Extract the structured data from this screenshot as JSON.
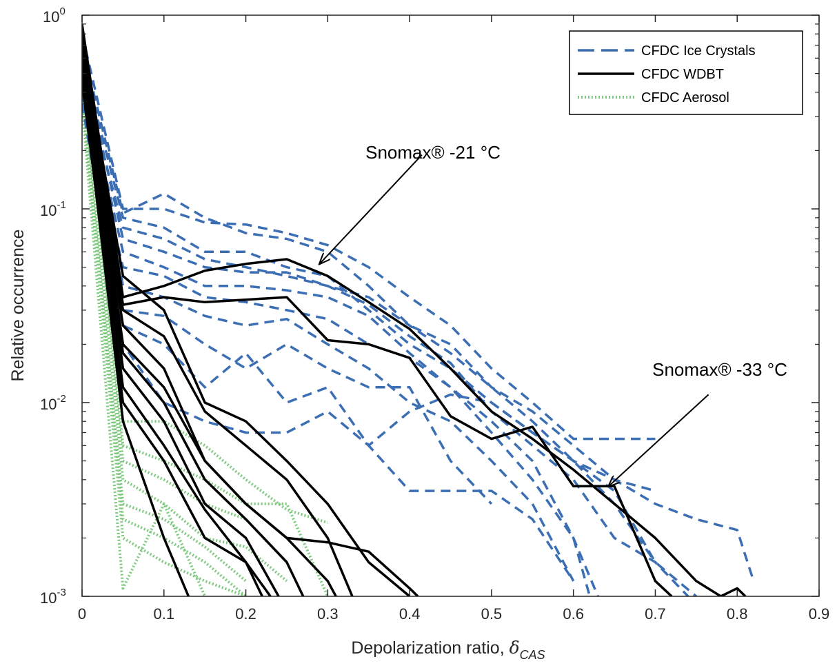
{
  "chart_data": {
    "type": "line",
    "xlabel": "Depolarization ratio, ",
    "xlabel_symbol": "δ",
    "xlabel_subscript": "CAS",
    "ylabel": "Relative occurrence",
    "xlim": [
      0,
      0.9
    ],
    "ylim": [
      0.001,
      1
    ],
    "yscale": "log",
    "x_ticks": [
      0,
      0.1,
      0.2,
      0.3,
      0.4,
      0.5,
      0.6,
      0.7,
      0.8,
      0.9
    ],
    "x_tick_labels": [
      "0",
      "0.1",
      "0.2",
      "0.3",
      "0.4",
      "0.5",
      "0.6",
      "0.7",
      "0.8",
      "0.9"
    ],
    "y_ticks": [
      {
        "value": 1,
        "base": "10",
        "exp": "0"
      },
      {
        "value": 0.1,
        "base": "10",
        "exp": "-1"
      },
      {
        "value": 0.01,
        "base": "10",
        "exp": "-2"
      },
      {
        "value": 0.001,
        "base": "10",
        "exp": "-3"
      }
    ],
    "grid": false,
    "legend": {
      "placement": "top-right",
      "entries": [
        {
          "label": "CFDC Ice Crystals",
          "color": "#3c6eb4",
          "style": "dashed"
        },
        {
          "label": "CFDC WDBT",
          "color": "#000000",
          "style": "solid"
        },
        {
          "label": "CFDC Aerosol",
          "color": "#7cc87c",
          "style": "dotted"
        }
      ]
    },
    "annotations": [
      {
        "text": "Snomax® -21 °C",
        "arrow_from": [
          0.415,
          0.19
        ],
        "arrow_to": [
          0.29,
          0.052
        ]
      },
      {
        "text": "Snomax® -33 °C",
        "arrow_from": [
          0.765,
          0.011
        ],
        "arrow_to": [
          0.643,
          0.0037
        ]
      }
    ],
    "series": [
      {
        "group": "CFDC Ice Crystals",
        "x": [
          0,
          0.05,
          0.1,
          0.15,
          0.2,
          0.25,
          0.3,
          0.35,
          0.4,
          0.45,
          0.5,
          0.55,
          0.6,
          0.65,
          0.7
        ],
        "y": [
          0.8,
          0.1,
          0.1,
          0.085,
          0.083,
          0.075,
          0.065,
          0.05,
          0.035,
          0.025,
          0.015,
          0.01,
          0.0065,
          0.0065,
          0.0065
        ]
      },
      {
        "group": "CFDC Ice Crystals",
        "x": [
          0,
          0.05,
          0.1,
          0.15,
          0.2,
          0.25,
          0.3,
          0.35,
          0.4,
          0.45,
          0.5,
          0.55,
          0.6,
          0.65,
          0.7,
          0.75,
          0.8,
          0.82
        ],
        "y": [
          0.7,
          0.095,
          0.12,
          0.09,
          0.075,
          0.07,
          0.06,
          0.04,
          0.025,
          0.02,
          0.012,
          0.009,
          0.006,
          0.004,
          0.003,
          0.0025,
          0.0022,
          0.0012
        ]
      },
      {
        "group": "CFDC Ice Crystals",
        "x": [
          0,
          0.05,
          0.1,
          0.15,
          0.2,
          0.25,
          0.3,
          0.35,
          0.4,
          0.45,
          0.5,
          0.55,
          0.6,
          0.65,
          0.7,
          0.75
        ],
        "y": [
          0.6,
          0.09,
          0.08,
          0.06,
          0.06,
          0.05,
          0.045,
          0.03,
          0.02,
          0.015,
          0.01,
          0.007,
          0.005,
          0.0035,
          0.0015,
          0.001
        ]
      },
      {
        "group": "CFDC Ice Crystals",
        "x": [
          0,
          0.05,
          0.1,
          0.15,
          0.2,
          0.25,
          0.3,
          0.35,
          0.4,
          0.45,
          0.5,
          0.55,
          0.6,
          0.65,
          0.7
        ],
        "y": [
          0.5,
          0.08,
          0.07,
          0.055,
          0.05,
          0.045,
          0.04,
          0.035,
          0.025,
          0.018,
          0.012,
          0.008,
          0.005,
          0.003,
          0.0015
        ]
      },
      {
        "group": "CFDC Ice Crystals",
        "x": [
          0,
          0.05,
          0.1,
          0.15,
          0.2,
          0.25,
          0.3,
          0.35,
          0.4,
          0.45,
          0.5,
          0.55,
          0.6,
          0.65,
          0.7,
          0.74
        ],
        "y": [
          0.6,
          0.07,
          0.06,
          0.05,
          0.047,
          0.047,
          0.04,
          0.032,
          0.022,
          0.016,
          0.009,
          0.006,
          0.004,
          0.002,
          0.0015,
          0.001
        ]
      },
      {
        "group": "CFDC Ice Crystals",
        "x": [
          0,
          0.05,
          0.1,
          0.15,
          0.2,
          0.25,
          0.3,
          0.35,
          0.4,
          0.45,
          0.5,
          0.55,
          0.6,
          0.63
        ],
        "y": [
          0.5,
          0.06,
          0.05,
          0.04,
          0.04,
          0.038,
          0.035,
          0.028,
          0.018,
          0.012,
          0.008,
          0.005,
          0.002,
          0.001
        ]
      },
      {
        "group": "CFDC Ice Crystals",
        "x": [
          0,
          0.05,
          0.1,
          0.15,
          0.2,
          0.25,
          0.3,
          0.35,
          0.4,
          0.45,
          0.5,
          0.55,
          0.6,
          0.62
        ],
        "y": [
          0.4,
          0.05,
          0.045,
          0.035,
          0.033,
          0.03,
          0.027,
          0.02,
          0.017,
          0.012,
          0.007,
          0.004,
          0.002,
          0.001
        ]
      },
      {
        "group": "CFDC Ice Crystals",
        "x": [
          0,
          0.05,
          0.1,
          0.15,
          0.2,
          0.25,
          0.3,
          0.35,
          0.4,
          0.45,
          0.5,
          0.55,
          0.6
        ],
        "y": [
          0.5,
          0.04,
          0.035,
          0.028,
          0.025,
          0.027,
          0.02,
          0.015,
          0.01,
          0.008,
          0.005,
          0.003,
          0.0012
        ]
      },
      {
        "group": "CFDC Ice Crystals",
        "x": [
          0,
          0.05,
          0.1,
          0.15,
          0.2,
          0.25,
          0.3,
          0.35,
          0.4,
          0.45,
          0.5
        ],
        "y": [
          0.4,
          0.03,
          0.028,
          0.02,
          0.015,
          0.02,
          0.015,
          0.012,
          0.012,
          0.005,
          0.003
        ]
      },
      {
        "group": "CFDC Ice Crystals",
        "x": [
          0,
          0.05,
          0.1,
          0.15,
          0.2,
          0.25,
          0.3,
          0.35,
          0.4,
          0.45,
          0.5,
          0.55,
          0.6
        ],
        "y": [
          0.4,
          0.025,
          0.02,
          0.012,
          0.018,
          0.01,
          0.012,
          0.006,
          0.0035,
          0.0035,
          0.0035,
          0.0025,
          0.0012
        ]
      },
      {
        "group": "CFDC Ice Crystals",
        "x": [
          0,
          0.05,
          0.1,
          0.15,
          0.2,
          0.25,
          0.3,
          0.35,
          0.4,
          0.45,
          0.5,
          0.55,
          0.6,
          0.65,
          0.7
        ],
        "y": [
          0.35,
          0.02,
          0.01,
          0.008,
          0.007,
          0.007,
          0.009,
          0.006,
          0.009,
          0.011,
          0.01,
          0.007,
          0.005,
          0.004,
          0.0035
        ]
      },
      {
        "group": "CFDC WDBT",
        "x": [
          0,
          0.05,
          0.1,
          0.15,
          0.2,
          0.25,
          0.3,
          0.35,
          0.4,
          0.45,
          0.5,
          0.55,
          0.6,
          0.65,
          0.7,
          0.75,
          0.78,
          0.8,
          0.81
        ],
        "y": [
          0.9,
          0.035,
          0.04,
          0.048,
          0.052,
          0.055,
          0.045,
          0.033,
          0.024,
          0.015,
          0.009,
          0.0065,
          0.0045,
          0.003,
          0.002,
          0.0012,
          0.001,
          0.0011,
          0.001
        ]
      },
      {
        "group": "CFDC WDBT",
        "x": [
          0,
          0.05,
          0.1,
          0.15,
          0.2,
          0.25,
          0.3,
          0.35,
          0.4,
          0.45,
          0.5,
          0.55,
          0.6,
          0.65,
          0.7,
          0.72
        ],
        "y": [
          0.8,
          0.032,
          0.035,
          0.033,
          0.034,
          0.035,
          0.021,
          0.02,
          0.017,
          0.0085,
          0.0065,
          0.0075,
          0.0037,
          0.0037,
          0.0012,
          0.001
        ]
      },
      {
        "group": "CFDC WDBT",
        "x": [
          0,
          0.05,
          0.1,
          0.15,
          0.2,
          0.25,
          0.3,
          0.35,
          0.4
        ],
        "y": [
          0.7,
          0.045,
          0.03,
          0.01,
          0.008,
          0.005,
          0.003,
          0.0015,
          0.001
        ]
      },
      {
        "group": "CFDC WDBT",
        "x": [
          0,
          0.05,
          0.1,
          0.15,
          0.2,
          0.25,
          0.3,
          0.33
        ],
        "y": [
          0.65,
          0.03,
          0.022,
          0.009,
          0.006,
          0.004,
          0.002,
          0.001
        ]
      },
      {
        "group": "CFDC WDBT",
        "x": [
          0,
          0.05,
          0.1,
          0.15,
          0.2,
          0.25,
          0.3,
          0.35,
          0.4,
          0.41
        ],
        "y": [
          0.6,
          0.025,
          0.015,
          0.005,
          0.003,
          0.002,
          0.0019,
          0.0017,
          0.0011,
          0.001
        ]
      },
      {
        "group": "CFDC WDBT",
        "x": [
          0,
          0.05,
          0.1,
          0.15,
          0.2,
          0.25,
          0.3,
          0.31
        ],
        "y": [
          0.6,
          0.02,
          0.012,
          0.005,
          0.003,
          0.002,
          0.0012,
          0.001
        ]
      },
      {
        "group": "CFDC WDBT",
        "x": [
          0,
          0.05,
          0.1,
          0.15,
          0.2,
          0.25,
          0.27
        ],
        "y": [
          0.55,
          0.018,
          0.01,
          0.004,
          0.0025,
          0.0015,
          0.001
        ]
      },
      {
        "group": "CFDC WDBT",
        "x": [
          0,
          0.05,
          0.1,
          0.15,
          0.2,
          0.24
        ],
        "y": [
          0.55,
          0.015,
          0.008,
          0.003,
          0.002,
          0.001
        ]
      },
      {
        "group": "CFDC WDBT",
        "x": [
          0,
          0.05,
          0.1,
          0.15,
          0.2,
          0.22
        ],
        "y": [
          0.5,
          0.012,
          0.006,
          0.0028,
          0.0015,
          0.001
        ]
      },
      {
        "group": "CFDC WDBT",
        "x": [
          0,
          0.05,
          0.1,
          0.13
        ],
        "y": [
          0.5,
          0.008,
          0.002,
          0.001
        ]
      },
      {
        "group": "CFDC WDBT",
        "x": [
          0,
          0.05,
          0.1,
          0.15,
          0.2,
          0.23
        ],
        "y": [
          0.45,
          0.01,
          0.005,
          0.002,
          0.0015,
          0.001
        ]
      },
      {
        "group": "CFDC Aerosol",
        "x": [
          0,
          0.05,
          0.1,
          0.15,
          0.2,
          0.25,
          0.3
        ],
        "y": [
          0.7,
          0.008,
          0.008,
          0.006,
          0.004,
          0.0028,
          0.0024
        ]
      },
      {
        "group": "CFDC Aerosol",
        "x": [
          0,
          0.05,
          0.1,
          0.15,
          0.2,
          0.25,
          0.3
        ],
        "y": [
          0.6,
          0.006,
          0.005,
          0.004,
          0.003,
          0.003,
          0.001
        ]
      },
      {
        "group": "CFDC Aerosol",
        "x": [
          0,
          0.05,
          0.1,
          0.15,
          0.2,
          0.25
        ],
        "y": [
          0.5,
          0.005,
          0.004,
          0.003,
          0.0025,
          0.0015
        ]
      },
      {
        "group": "CFDC Aerosol",
        "x": [
          0,
          0.05,
          0.1,
          0.15,
          0.2,
          0.25
        ],
        "y": [
          0.5,
          0.004,
          0.003,
          0.002,
          0.0018,
          0.0012
        ]
      },
      {
        "group": "CFDC Aerosol",
        "x": [
          0,
          0.05,
          0.1,
          0.15,
          0.2
        ],
        "y": [
          0.4,
          0.003,
          0.0025,
          0.0018,
          0.0012
        ]
      },
      {
        "group": "CFDC Aerosol",
        "x": [
          0,
          0.05,
          0.1,
          0.15,
          0.2
        ],
        "y": [
          0.45,
          0.0025,
          0.002,
          0.0015,
          0.001
        ]
      },
      {
        "group": "CFDC Aerosol",
        "x": [
          0,
          0.05,
          0.1,
          0.15
        ],
        "y": [
          0.35,
          0.0011,
          0.003,
          0.001
        ]
      },
      {
        "group": "CFDC Aerosol",
        "x": [
          0,
          0.05,
          0.1,
          0.15,
          0.2
        ],
        "y": [
          0.4,
          0.002,
          0.0015,
          0.0012,
          0.001
        ]
      }
    ]
  }
}
